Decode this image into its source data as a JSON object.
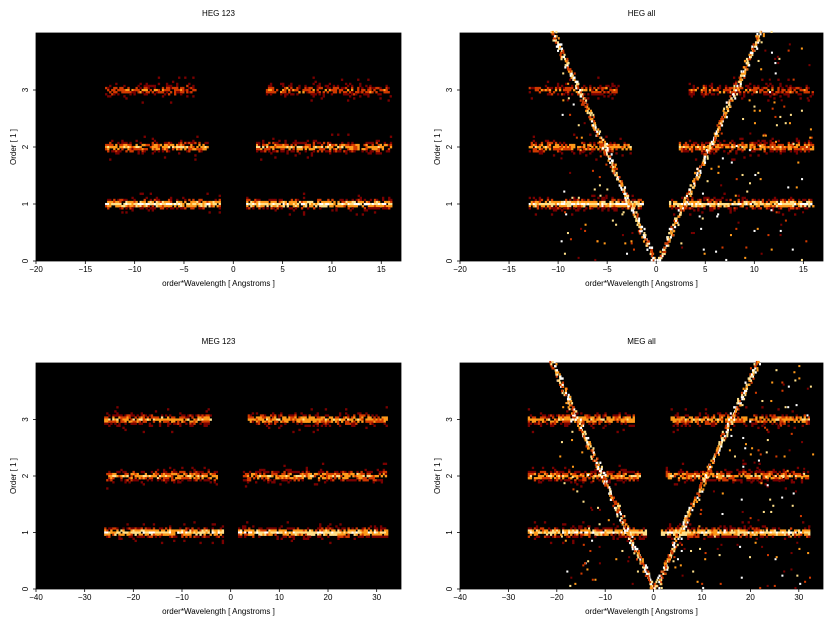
{
  "chart_data": [
    {
      "type": "heatmap",
      "title": "HEG 123",
      "xlabel": "order*Wavelength [ Angstroms ]",
      "ylabel": "Order [ 1 ]",
      "xlim": [
        -20,
        17
      ],
      "ylim": [
        0,
        4
      ],
      "xticks": [
        -20,
        -15,
        -10,
        -5,
        0,
        5,
        10,
        15
      ],
      "yticks": [
        0,
        1,
        2,
        3
      ],
      "colormap": [
        "#000000",
        "#7a0000",
        "#d23a00",
        "#ff9a1a",
        "#ffe08a",
        "#ffffff"
      ],
      "bands": [
        {
          "order": 1,
          "segments": [
            [
              -13,
              -1.3
            ],
            [
              1.3,
              16
            ]
          ],
          "intensity": "high"
        },
        {
          "order": 2,
          "segments": [
            [
              -13,
              -2.7
            ],
            [
              2.3,
              16
            ]
          ],
          "intensity": "medium"
        },
        {
          "order": 3,
          "segments": [
            [
              -13,
              -3.8
            ],
            [
              3.3,
              16
            ]
          ],
          "intensity": "low"
        }
      ],
      "wedge": false
    },
    {
      "type": "heatmap",
      "title": "HEG all",
      "xlabel": "order*Wavelength [ Angstroms ]",
      "ylabel": "Order [ 1 ]",
      "xlim": [
        -20,
        17
      ],
      "ylim": [
        0,
        4
      ],
      "xticks": [
        -20,
        -15,
        -10,
        -5,
        0,
        5,
        10,
        15
      ],
      "yticks": [
        0,
        1,
        2,
        3
      ],
      "colormap": [
        "#000000",
        "#7a0000",
        "#d23a00",
        "#ff9a1a",
        "#ffe08a",
        "#ffffff"
      ],
      "bands": [
        {
          "order": 1,
          "segments": [
            [
              -13,
              -1.3
            ],
            [
              1.3,
              16
            ]
          ],
          "intensity": "high"
        },
        {
          "order": 2,
          "segments": [
            [
              -13,
              -2.7
            ],
            [
              2.3,
              16
            ]
          ],
          "intensity": "medium"
        },
        {
          "order": 3,
          "segments": [
            [
              -13,
              -3.8
            ],
            [
              3.3,
              16
            ]
          ],
          "intensity": "low"
        }
      ],
      "wedge": true
    },
    {
      "type": "heatmap",
      "title": "MEG 123",
      "xlabel": "order*Wavelength [ Angstroms ]",
      "ylabel": "Order [ 1 ]",
      "xlim": [
        -40,
        35
      ],
      "ylim": [
        0,
        4
      ],
      "xticks": [
        -40,
        -30,
        -20,
        -10,
        0,
        10,
        20,
        30
      ],
      "yticks": [
        0,
        1,
        2,
        3
      ],
      "colormap": [
        "#000000",
        "#7a0000",
        "#d23a00",
        "#ff9a1a",
        "#ffe08a",
        "#ffffff"
      ],
      "bands": [
        {
          "order": 1,
          "segments": [
            [
              -26,
              -1.5
            ],
            [
              1.5,
              32
            ]
          ],
          "intensity": "high"
        },
        {
          "order": 2,
          "segments": [
            [
              -26,
              -2.8
            ],
            [
              2.5,
              32
            ]
          ],
          "intensity": "medium"
        },
        {
          "order": 3,
          "segments": [
            [
              -26,
              -4
            ],
            [
              3.5,
              32
            ]
          ],
          "intensity": "medium"
        }
      ],
      "wedge": false
    },
    {
      "type": "heatmap",
      "title": "MEG all",
      "xlabel": "order*Wavelength [ Angstroms ]",
      "ylabel": "Order [ 1 ]",
      "xlim": [
        -40,
        35
      ],
      "ylim": [
        0,
        4
      ],
      "xticks": [
        -40,
        -30,
        -20,
        -10,
        0,
        10,
        20,
        30
      ],
      "yticks": [
        0,
        1,
        2,
        3
      ],
      "colormap": [
        "#000000",
        "#7a0000",
        "#d23a00",
        "#ff9a1a",
        "#ffe08a",
        "#ffffff"
      ],
      "bands": [
        {
          "order": 1,
          "segments": [
            [
              -26,
              -1.5
            ],
            [
              1.5,
              32
            ]
          ],
          "intensity": "high"
        },
        {
          "order": 2,
          "segments": [
            [
              -26,
              -2.8
            ],
            [
              2.5,
              32
            ]
          ],
          "intensity": "medium"
        },
        {
          "order": 3,
          "segments": [
            [
              -26,
              -4
            ],
            [
              3.5,
              32
            ]
          ],
          "intensity": "medium"
        }
      ],
      "wedge": true
    }
  ]
}
